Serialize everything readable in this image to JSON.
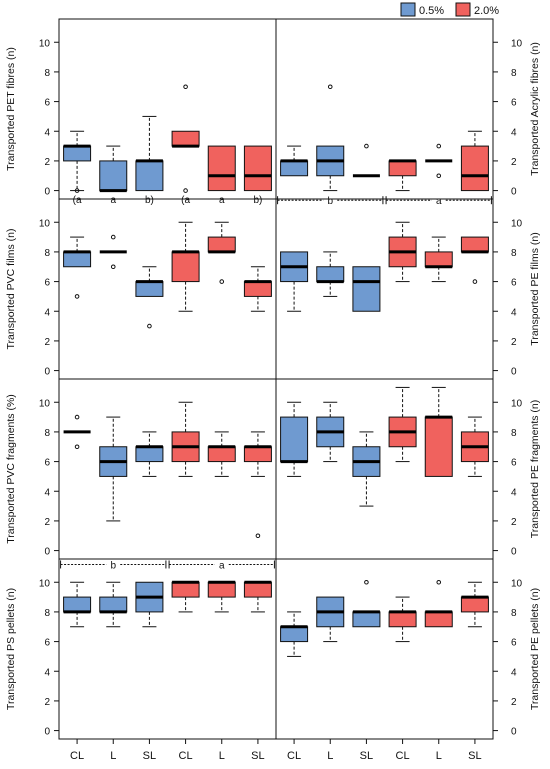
{
  "chart_data": {
    "type": "boxplot",
    "categories": [
      "CL",
      "L",
      "SL",
      "CL",
      "L",
      "SL"
    ],
    "legend": {
      "placement": "top-right",
      "entries": [
        {
          "label": "0.5%",
          "color": "#6f9ad0"
        },
        {
          "label": "2.0%",
          "color": "#f0625e"
        }
      ]
    },
    "colors": {
      "series_0_5": "#6f9ad0",
      "series_2_0": "#f0625e"
    },
    "y_ticks": [
      0,
      2,
      4,
      6,
      8,
      10
    ],
    "ylim": [
      -0.5,
      11.5
    ],
    "panels": [
      {
        "ylabel": "Transported PET fibres (n)",
        "boxes": [
          {
            "min": 0,
            "q1": 2,
            "median": 3,
            "q3": 3,
            "max": 4,
            "outliers": [
              0
            ]
          },
          {
            "min": 0,
            "q1": 0,
            "median": 0,
            "q3": 2,
            "max": 3,
            "outliers": []
          },
          {
            "min": 0,
            "q1": 0,
            "median": 2,
            "q3": 2,
            "max": 5,
            "outliers": []
          },
          {
            "min": 3,
            "q1": 3,
            "median": 3,
            "q3": 4,
            "max": 4,
            "outliers": [
              7,
              0
            ]
          },
          {
            "min": 0,
            "q1": 0,
            "median": 1,
            "q3": 3,
            "max": 3,
            "outliers": []
          },
          {
            "min": 0,
            "q1": 0,
            "median": 1,
            "q3": 3,
            "max": 3,
            "outliers": []
          }
        ],
        "letters": [
          "(a",
          "a",
          "b)",
          "(a",
          "a",
          "b)"
        ]
      },
      {
        "ylabel": "Transported Acrylic fibres (n)",
        "boxes": [
          {
            "min": 1,
            "q1": 1,
            "median": 2,
            "q3": 2,
            "max": 3,
            "outliers": []
          },
          {
            "min": 0,
            "q1": 1,
            "median": 2,
            "q3": 3,
            "max": 3,
            "outliers": [
              7
            ]
          },
          {
            "min": 1,
            "q1": 1,
            "median": 1,
            "q3": 1,
            "max": 1,
            "outliers": [
              3
            ]
          },
          {
            "min": 0,
            "q1": 1,
            "median": 2,
            "q3": 2,
            "max": 2,
            "outliers": []
          },
          {
            "min": 2,
            "q1": 2,
            "median": 2,
            "q3": 2,
            "max": 2,
            "outliers": [
              3,
              1
            ]
          },
          {
            "min": 0,
            "q1": 0,
            "median": 1,
            "q3": 3,
            "max": 4,
            "outliers": []
          }
        ],
        "group_labels": [
          {
            "text": "b",
            "from": 0,
            "to": 2
          },
          {
            "text": "a",
            "from": 3,
            "to": 5
          }
        ]
      },
      {
        "ylabel": "Transported PVC films (n)",
        "boxes": [
          {
            "min": 7,
            "q1": 7,
            "median": 8,
            "q3": 8,
            "max": 9,
            "outliers": [
              5
            ]
          },
          {
            "min": 8,
            "q1": 8,
            "median": 8,
            "q3": 8,
            "max": 8,
            "outliers": [
              9,
              7
            ]
          },
          {
            "min": 5,
            "q1": 5,
            "median": 6,
            "q3": 6,
            "max": 7,
            "outliers": [
              3
            ]
          },
          {
            "min": 4,
            "q1": 6,
            "median": 8,
            "q3": 8,
            "max": 10,
            "outliers": []
          },
          {
            "min": 8,
            "q1": 8,
            "median": 8,
            "q3": 9,
            "max": 10,
            "outliers": [
              6
            ]
          },
          {
            "min": 4,
            "q1": 5,
            "median": 6,
            "q3": 6,
            "max": 7,
            "outliers": []
          }
        ]
      },
      {
        "ylabel": "Transported PE films (n)",
        "boxes": [
          {
            "min": 4,
            "q1": 6,
            "median": 7,
            "q3": 8,
            "max": 8,
            "outliers": []
          },
          {
            "min": 5,
            "q1": 6,
            "median": 6,
            "q3": 7,
            "max": 8,
            "outliers": []
          },
          {
            "min": 4,
            "q1": 4,
            "median": 6,
            "q3": 7,
            "max": 7,
            "outliers": []
          },
          {
            "min": 6,
            "q1": 7,
            "median": 8,
            "q3": 9,
            "max": 10,
            "outliers": []
          },
          {
            "min": 6,
            "q1": 7,
            "median": 7,
            "q3": 8,
            "max": 9,
            "outliers": []
          },
          {
            "min": 8,
            "q1": 8,
            "median": 8,
            "q3": 9,
            "max": 9,
            "outliers": [
              6
            ]
          }
        ]
      },
      {
        "ylabel": "Transported PVC fragments (%)",
        "boxes": [
          {
            "min": 8,
            "q1": 8,
            "median": 8,
            "q3": 8,
            "max": 8,
            "outliers": [
              9,
              7
            ]
          },
          {
            "min": 2,
            "q1": 5,
            "median": 6,
            "q3": 7,
            "max": 9,
            "outliers": []
          },
          {
            "min": 5,
            "q1": 6,
            "median": 7,
            "q3": 7,
            "max": 8,
            "outliers": []
          },
          {
            "min": 5,
            "q1": 6,
            "median": 7,
            "q3": 8,
            "max": 10,
            "outliers": []
          },
          {
            "min": 5,
            "q1": 6,
            "median": 7,
            "q3": 7,
            "max": 8,
            "outliers": []
          },
          {
            "min": 5,
            "q1": 6,
            "median": 7,
            "q3": 7,
            "max": 8,
            "outliers": [
              1
            ]
          }
        ]
      },
      {
        "ylabel": "Transported PE fragments (n)",
        "boxes": [
          {
            "min": 5,
            "q1": 6,
            "median": 6,
            "q3": 9,
            "max": 10,
            "outliers": []
          },
          {
            "min": 6,
            "q1": 7,
            "median": 8,
            "q3": 9,
            "max": 10,
            "outliers": []
          },
          {
            "min": 3,
            "q1": 5,
            "median": 6,
            "q3": 7,
            "max": 8,
            "outliers": []
          },
          {
            "min": 6,
            "q1": 7,
            "median": 8,
            "q3": 9,
            "max": 11,
            "outliers": []
          },
          {
            "min": 5,
            "q1": 5,
            "median": 9,
            "q3": 9,
            "max": 11,
            "outliers": []
          },
          {
            "min": 5,
            "q1": 6,
            "median": 7,
            "q3": 8,
            "max": 9,
            "outliers": []
          }
        ]
      },
      {
        "ylabel": "Transported PS pellets (n)",
        "boxes": [
          {
            "min": 7,
            "q1": 8,
            "median": 8,
            "q3": 9,
            "max": 10,
            "outliers": []
          },
          {
            "min": 7,
            "q1": 8,
            "median": 8,
            "q3": 9,
            "max": 10,
            "outliers": []
          },
          {
            "min": 7,
            "q1": 8,
            "median": 9,
            "q3": 10,
            "max": 10,
            "outliers": []
          },
          {
            "min": 8,
            "q1": 9,
            "median": 10,
            "q3": 10,
            "max": 10,
            "outliers": []
          },
          {
            "min": 8,
            "q1": 9,
            "median": 10,
            "q3": 10,
            "max": 10,
            "outliers": []
          },
          {
            "min": 8,
            "q1": 9,
            "median": 10,
            "q3": 10,
            "max": 10,
            "outliers": []
          }
        ],
        "group_labels": [
          {
            "text": "b",
            "from": 0,
            "to": 2
          },
          {
            "text": "a",
            "from": 3,
            "to": 5
          }
        ]
      },
      {
        "ylabel": "Transported PE pellets (n)",
        "boxes": [
          {
            "min": 5,
            "q1": 6,
            "median": 7,
            "q3": 7,
            "max": 8,
            "outliers": []
          },
          {
            "min": 6,
            "q1": 7,
            "median": 8,
            "q3": 9,
            "max": 9,
            "outliers": []
          },
          {
            "min": 7,
            "q1": 7,
            "median": 8,
            "q3": 8,
            "max": 8,
            "outliers": [
              10
            ]
          },
          {
            "min": 6,
            "q1": 7,
            "median": 8,
            "q3": 8,
            "max": 9,
            "outliers": []
          },
          {
            "min": 7,
            "q1": 7,
            "median": 8,
            "q3": 8,
            "max": 8,
            "outliers": [
              10
            ]
          },
          {
            "min": 7,
            "q1": 8,
            "median": 9,
            "q3": 9,
            "max": 10,
            "outliers": []
          }
        ]
      }
    ]
  }
}
